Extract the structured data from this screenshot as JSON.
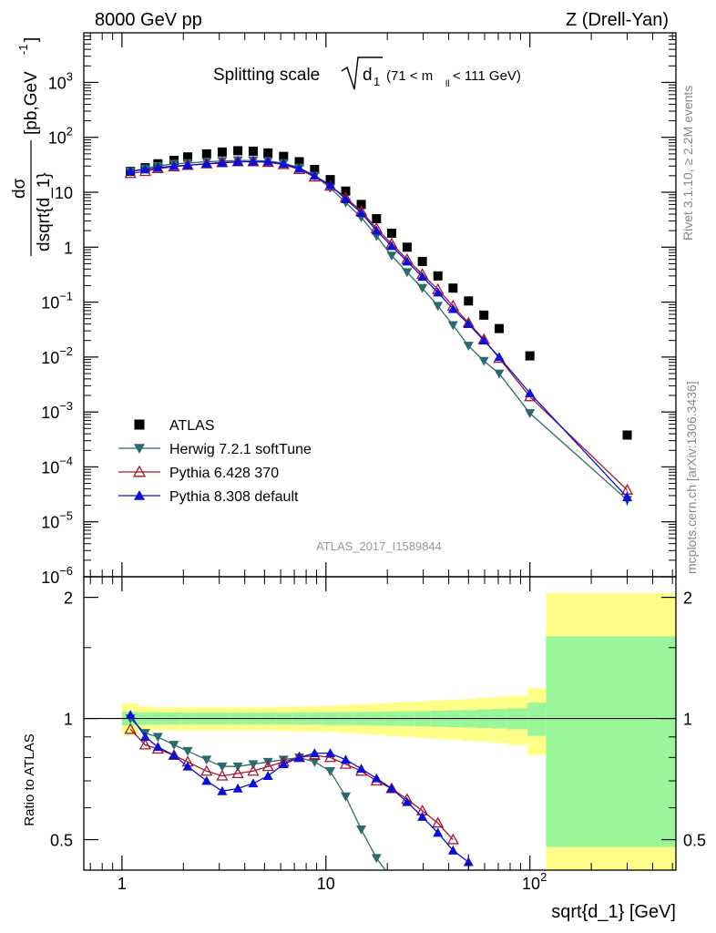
{
  "header": {
    "left": "8000 GeV pp",
    "right": "Z (Drell-Yan)"
  },
  "plot_title": {
    "main": "Splitting scale",
    "sqrt_arg": "d",
    "sqrt_sub": "1",
    "cut_open": "(71 < m",
    "cut_sub": "ll",
    "cut_close": " < 111 GeV)"
  },
  "side_labels": {
    "rivet": "Rivet 3.1.10, ≥ 2.2M events",
    "mcplots": "mcplots.cern.ch [arXiv:1306.3436]"
  },
  "analysis_id": "ATLAS_2017_I1589844",
  "y_label_top": {
    "num": "dσ",
    "den": "dsqrt{d_1}",
    "units": "[pb,GeV",
    "units_sup": "-1",
    "units_close": "]"
  },
  "y_label_bottom": "Ratio to ATLAS",
  "x_label": "sqrt{d_1} [GeV]",
  "legend": [
    {
      "label": "ATLAS",
      "marker": "square"
    },
    {
      "label": "Herwig 7.2.1 softTune",
      "marker": "tri-down"
    },
    {
      "label": "Pythia 6.428 370",
      "marker": "tri-up-open"
    },
    {
      "label": "Pythia 8.308 default",
      "marker": "tri-up"
    }
  ],
  "chart_data": [
    {
      "type": "scatter",
      "panel": "main",
      "xscale": "log",
      "yscale": "log",
      "xlim": [
        0.65,
        520
      ],
      "ylim": [
        1e-06,
        8000
      ],
      "xticklabels": [
        "1",
        "10",
        "10^2"
      ],
      "yticklabels": [
        "10^-6",
        "10^-5",
        "10^-4",
        "10^-3",
        "10^-2",
        "10^-1",
        "1",
        "10",
        "10^2",
        "10^3"
      ],
      "legend_position": "lower-left",
      "series": [
        {
          "name": "ATLAS",
          "color": "#000000",
          "marker": "square",
          "x": [
            1.1,
            1.3,
            1.5,
            1.8,
            2.1,
            2.6,
            3.1,
            3.7,
            4.4,
            5.2,
            6.2,
            7.4,
            8.8,
            10.5,
            12.5,
            14.9,
            17.7,
            21.0,
            25.0,
            29.7,
            35.4,
            42.0,
            50.0,
            59.5,
            70.7,
            100,
            300
          ],
          "y": [
            24,
            28,
            33,
            38,
            44,
            50,
            54,
            57,
            56,
            52,
            45,
            36,
            26,
            17,
            10.5,
            6.0,
            3.3,
            1.8,
            1.0,
            0.55,
            0.3,
            0.18,
            0.105,
            0.058,
            0.033,
            0.0105,
            0.00038
          ]
        },
        {
          "name": "Herwig 7.2.1 softTune",
          "color": "#2a6b70",
          "marker": "tri-down",
          "x": [
            1.1,
            1.3,
            1.5,
            1.8,
            2.1,
            2.6,
            3.1,
            3.7,
            4.4,
            5.2,
            6.2,
            7.4,
            8.8,
            10.5,
            12.5,
            14.9,
            17.7,
            21.0,
            25.0,
            29.7,
            35.4,
            42.0,
            50.0,
            59.5,
            70.7,
            100,
            300
          ],
          "y": [
            24,
            27,
            30,
            33,
            34,
            36,
            37,
            38,
            38,
            37,
            34,
            28,
            20,
            12,
            6.5,
            3.5,
            1.6,
            0.7,
            0.35,
            0.18,
            0.085,
            0.038,
            0.016,
            0.0085,
            0.005,
            0.00095,
            2.5e-05
          ]
        },
        {
          "name": "Pythia 6.428 370",
          "color": "#a8152a",
          "marker": "tri-up-open",
          "x": [
            1.1,
            1.3,
            1.5,
            1.8,
            2.1,
            2.6,
            3.1,
            3.7,
            4.4,
            5.2,
            6.2,
            7.4,
            8.8,
            10.5,
            12.5,
            14.9,
            17.7,
            21.0,
            25.0,
            29.7,
            35.4,
            42.0,
            50.0,
            59.5,
            70.7,
            100,
            300
          ],
          "y": [
            22,
            24,
            27,
            29,
            31,
            33,
            35,
            36,
            36,
            35,
            32,
            26,
            19,
            13,
            8,
            4.5,
            2.2,
            1.15,
            0.6,
            0.32,
            0.17,
            0.085,
            0.042,
            0.021,
            0.0095,
            0.0019,
            3.8e-05
          ]
        },
        {
          "name": "Pythia 8.308 default",
          "color": "#0a10d8",
          "marker": "tri-up",
          "x": [
            1.1,
            1.3,
            1.5,
            1.8,
            2.1,
            2.6,
            3.1,
            3.7,
            4.4,
            5.2,
            6.2,
            7.4,
            8.8,
            10.5,
            12.5,
            14.9,
            17.7,
            21.0,
            25.0,
            29.7,
            35.4,
            42.0,
            50.0,
            59.5,
            70.7,
            100,
            300
          ],
          "y": [
            24,
            26,
            28,
            30,
            31,
            33,
            34,
            36,
            36,
            36,
            33,
            27,
            20,
            13.5,
            7.5,
            4.2,
            2.0,
            1.05,
            0.55,
            0.29,
            0.15,
            0.075,
            0.04,
            0.02,
            0.01,
            0.0022,
            2.8e-05
          ],
          "yerr": [
            0,
            0,
            0,
            0,
            0,
            0,
            0,
            0,
            0,
            0,
            0,
            0,
            0,
            0,
            0,
            0,
            0,
            0,
            0,
            0,
            0,
            0,
            0,
            0,
            0,
            0,
            8e-06
          ]
        }
      ]
    },
    {
      "type": "line",
      "panel": "ratio",
      "xscale": "log",
      "yscale": "log",
      "xlim": [
        0.65,
        520
      ],
      "ylim": [
        0.42,
        2.25
      ],
      "yticklabels": [
        "0.5",
        "1",
        "2"
      ],
      "uncertainty_bands": {
        "edges": [
          1.0,
          1.2,
          1.4,
          1.65,
          1.95,
          2.3,
          2.8,
          3.4,
          4.1,
          4.8,
          5.7,
          6.8,
          8.1,
          9.6,
          11.5,
          13.7,
          16.3,
          19.4,
          23.0,
          27.4,
          32.6,
          38.8,
          46.1,
          54.8,
          65.2,
          77.5,
          97.5,
          120,
          520
        ],
        "stat_lo": [
          0.96,
          0.965,
          0.965,
          0.965,
          0.966,
          0.966,
          0.966,
          0.966,
          0.966,
          0.966,
          0.966,
          0.965,
          0.965,
          0.964,
          0.963,
          0.962,
          0.961,
          0.96,
          0.958,
          0.956,
          0.954,
          0.952,
          0.95,
          0.947,
          0.944,
          0.94,
          0.905,
          0.48
        ],
        "stat_hi": [
          1.04,
          1.035,
          1.035,
          1.035,
          1.034,
          1.034,
          1.034,
          1.034,
          1.034,
          1.034,
          1.034,
          1.035,
          1.035,
          1.036,
          1.037,
          1.038,
          1.039,
          1.04,
          1.042,
          1.044,
          1.046,
          1.048,
          1.05,
          1.053,
          1.056,
          1.06,
          1.095,
          1.6
        ],
        "tot_lo": [
          0.91,
          0.93,
          0.935,
          0.935,
          0.935,
          0.935,
          0.935,
          0.935,
          0.935,
          0.935,
          0.932,
          0.93,
          0.928,
          0.925,
          0.92,
          0.915,
          0.91,
          0.905,
          0.9,
          0.895,
          0.89,
          0.885,
          0.88,
          0.875,
          0.87,
          0.86,
          0.81,
          0.42
        ],
        "tot_hi": [
          1.09,
          1.07,
          1.065,
          1.065,
          1.065,
          1.065,
          1.065,
          1.065,
          1.065,
          1.065,
          1.068,
          1.07,
          1.072,
          1.075,
          1.08,
          1.085,
          1.09,
          1.095,
          1.1,
          1.105,
          1.11,
          1.115,
          1.12,
          1.125,
          1.13,
          1.14,
          1.19,
          2.05
        ]
      },
      "series": [
        {
          "name": "Herwig 7.2.1 softTune",
          "color": "#2a6b70",
          "marker": "tri-down",
          "x": [
            1.1,
            1.3,
            1.5,
            1.8,
            2.1,
            2.6,
            3.1,
            3.7,
            4.4,
            5.2,
            6.2,
            7.4,
            8.8,
            10.5,
            12.5,
            14.9,
            17.7,
            21.0
          ],
          "y": [
            1.0,
            0.92,
            0.9,
            0.86,
            0.83,
            0.79,
            0.76,
            0.76,
            0.77,
            0.78,
            0.79,
            0.8,
            0.78,
            0.74,
            0.64,
            0.53,
            0.45,
            0.4
          ]
        },
        {
          "name": "Pythia 6.428 370",
          "color": "#a8152a",
          "marker": "tri-up-open",
          "x": [
            1.1,
            1.3,
            1.5,
            1.8,
            2.1,
            2.6,
            3.1,
            3.7,
            4.4,
            5.2,
            6.2,
            7.4,
            8.8,
            10.5,
            12.5,
            14.9,
            17.7,
            21.0,
            25.0,
            29.7,
            35.4,
            42.0
          ],
          "y": [
            0.94,
            0.86,
            0.84,
            0.81,
            0.78,
            0.74,
            0.72,
            0.73,
            0.74,
            0.76,
            0.78,
            0.8,
            0.81,
            0.8,
            0.77,
            0.74,
            0.7,
            0.67,
            0.63,
            0.59,
            0.55,
            0.5
          ]
        },
        {
          "name": "Pythia 8.308 default",
          "color": "#0a10d8",
          "marker": "tri-up",
          "x": [
            1.1,
            1.3,
            1.5,
            1.8,
            2.1,
            2.6,
            3.1,
            3.7,
            4.4,
            5.2,
            6.2,
            7.4,
            8.8,
            10.5,
            12.5,
            14.9,
            17.7,
            21.0,
            25.0,
            29.7,
            35.4,
            42.0,
            50.0
          ],
          "y": [
            1.02,
            0.9,
            0.85,
            0.81,
            0.76,
            0.7,
            0.66,
            0.67,
            0.69,
            0.72,
            0.77,
            0.8,
            0.82,
            0.82,
            0.79,
            0.75,
            0.71,
            0.67,
            0.62,
            0.57,
            0.52,
            0.47,
            0.44
          ],
          "yerr": [
            0,
            0,
            0,
            0,
            0,
            0,
            0,
            0,
            0,
            0,
            0,
            0,
            0,
            0,
            0,
            0,
            0,
            0,
            0,
            0,
            0,
            0.01,
            0.02
          ]
        }
      ]
    }
  ]
}
